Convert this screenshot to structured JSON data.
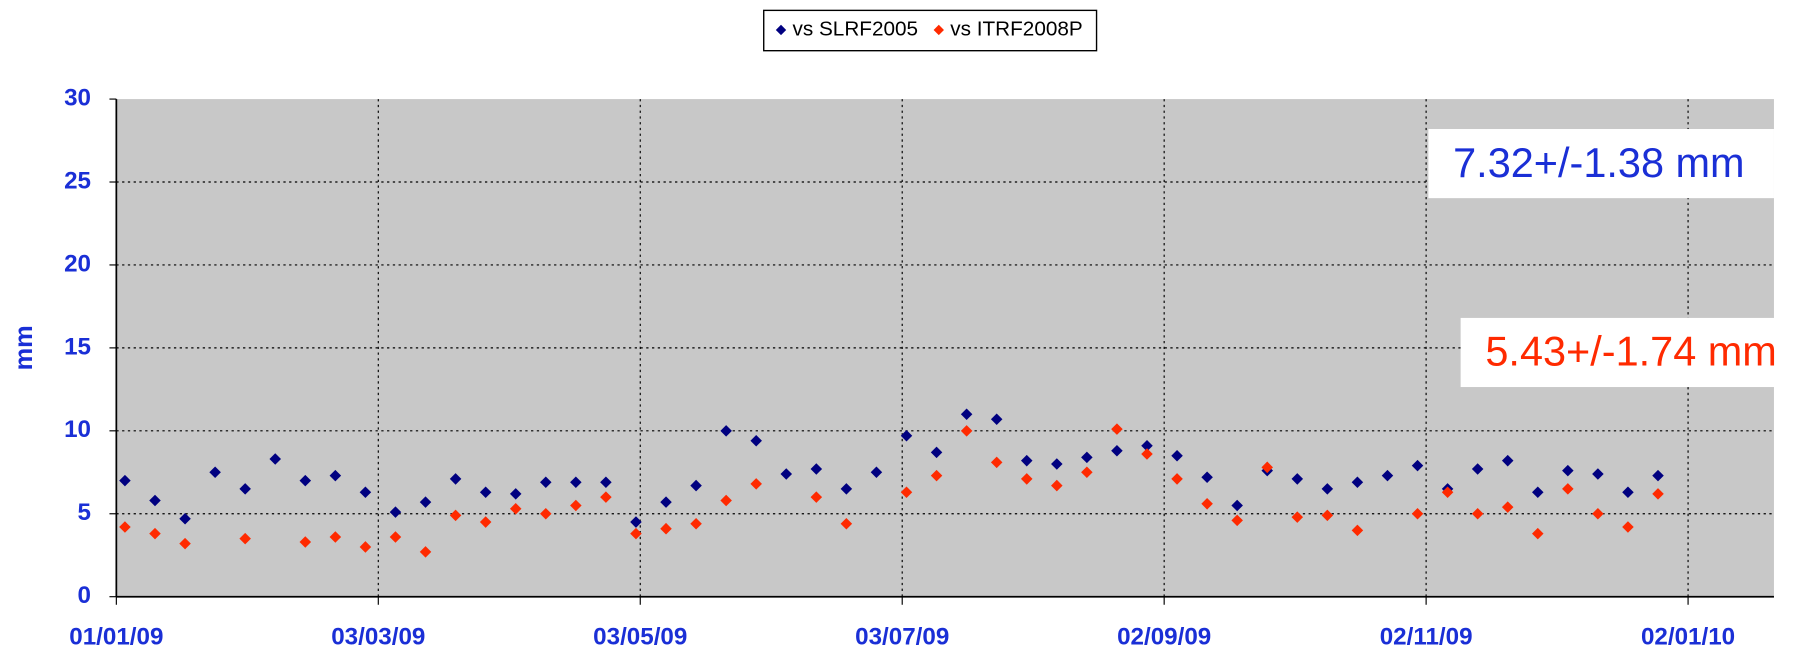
{
  "chart_data": {
    "type": "scatter",
    "y_label": "mm",
    "x": [
      "03/01/09",
      "10/01/09",
      "17/01/09",
      "24/01/09",
      "31/01/09",
      "07/02/09",
      "14/02/09",
      "21/02/09",
      "28/02/09",
      "07/03/09",
      "14/03/09",
      "21/03/09",
      "28/03/09",
      "04/04/09",
      "11/04/09",
      "18/04/09",
      "25/04/09",
      "02/05/09",
      "09/05/09",
      "16/05/09",
      "23/05/09",
      "30/05/09",
      "06/06/09",
      "13/06/09",
      "20/06/09",
      "27/06/09",
      "04/07/09",
      "11/07/09",
      "18/07/09",
      "25/07/09",
      "01/08/09",
      "08/08/09",
      "15/08/09",
      "22/08/09",
      "29/08/09",
      "05/09/09",
      "12/09/09",
      "19/09/09",
      "26/09/09",
      "03/10/09",
      "10/10/09",
      "17/10/09",
      "24/10/09",
      "31/10/09",
      "07/11/09",
      "14/11/09",
      "21/11/09",
      "28/11/09",
      "05/12/09",
      "12/12/09",
      "19/12/09",
      "26/12/09"
    ],
    "series": [
      {
        "name": "vs SLRF2005",
        "color": "#000080",
        "values": [
          7.0,
          5.8,
          4.7,
          7.5,
          6.5,
          8.3,
          7.0,
          7.3,
          6.3,
          5.1,
          5.7,
          7.1,
          6.3,
          6.2,
          6.9,
          6.9,
          6.9,
          4.5,
          5.7,
          6.7,
          10.0,
          9.4,
          7.4,
          7.7,
          6.5,
          7.5,
          9.7,
          8.7,
          11.0,
          10.7,
          8.2,
          8.0,
          8.4,
          8.8,
          9.1,
          8.5,
          7.2,
          5.5,
          7.6,
          7.1,
          6.5,
          6.9,
          7.3,
          7.9,
          6.5,
          7.7,
          8.2,
          6.3,
          7.6,
          7.4,
          6.3,
          7.3
        ]
      },
      {
        "name": "vs ITRF2008P",
        "color": "#ff2a00",
        "values": [
          4.2,
          3.8,
          3.2,
          null,
          3.5,
          null,
          3.3,
          3.6,
          3.0,
          3.6,
          2.7,
          4.9,
          4.5,
          5.3,
          5.0,
          5.5,
          6.0,
          3.8,
          4.1,
          4.4,
          5.8,
          6.8,
          null,
          6.0,
          4.4,
          null,
          6.3,
          7.3,
          10.0,
          8.1,
          7.1,
          6.7,
          7.5,
          10.1,
          8.6,
          7.1,
          5.6,
          4.6,
          7.8,
          4.8,
          4.9,
          4.0,
          null,
          5.0,
          6.3,
          5.0,
          5.4,
          3.8,
          6.5,
          5.0,
          4.2,
          6.2
        ]
      }
    ],
    "xlim": [
      "01/01/09",
      "22/01/10"
    ],
    "xticks": [
      "01/01/09",
      "03/03/09",
      "03/05/09",
      "03/07/09",
      "02/09/09",
      "02/11/09",
      "02/01/10"
    ],
    "ylim": [
      0,
      30
    ],
    "yticks": [
      0,
      5,
      10,
      15,
      20,
      25,
      30
    ],
    "grid": true,
    "legend": "top",
    "annotations": [
      {
        "text": "7.32+/-1.38 mm",
        "color": "#1a2fd6"
      },
      {
        "text": "5.43+/-1.74 mm",
        "color": "#ff2a00"
      }
    ]
  }
}
